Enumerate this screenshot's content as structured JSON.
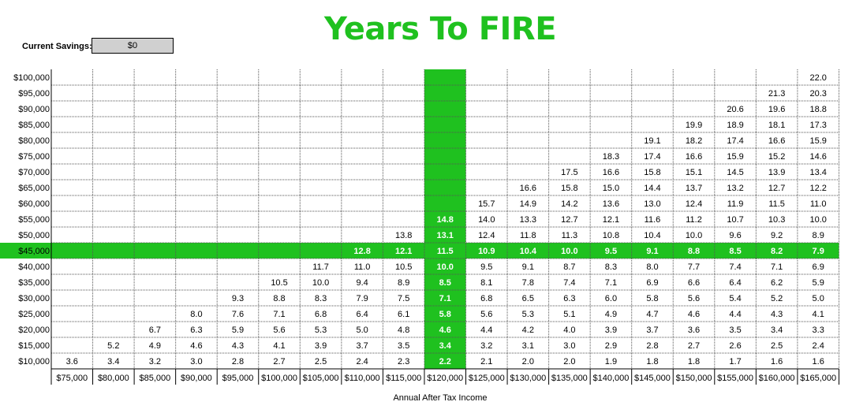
{
  "title": "Years To FIRE",
  "savings": {
    "label": "Current Savings:",
    "value": "$0"
  },
  "chart_data": {
    "type": "table",
    "title": "Years To FIRE",
    "xlabel": "Annual After Tax Income",
    "ylabel": "",
    "x": [
      "$75,000",
      "$80,000",
      "$85,000",
      "$90,000",
      "$95,000",
      "$100,000",
      "$105,000",
      "$110,000",
      "$115,000",
      "$120,000",
      "$125,000",
      "$130,000",
      "$135,000",
      "$140,000",
      "$145,000",
      "$150,000",
      "$155,000",
      "$160,000",
      "$165,000"
    ],
    "y": [
      "$100,000",
      "$95,000",
      "$90,000",
      "$85,000",
      "$80,000",
      "$75,000",
      "$70,000",
      "$65,000",
      "$60,000",
      "$55,000",
      "$50,000",
      "$45,000",
      "$40,000",
      "$35,000",
      "$30,000",
      "$25,000",
      "$20,000",
      "$15,000",
      "$10,000"
    ],
    "highlight_row": "$45,000",
    "highlight_col": "$120,000",
    "highlight_color": "#1fc11f",
    "values": [
      [
        "",
        "",
        "",
        "",
        "",
        "",
        "",
        "",
        "",
        "",
        "",
        "",
        "",
        "",
        "",
        "",
        "",
        "",
        "22.0"
      ],
      [
        "",
        "",
        "",
        "",
        "",
        "",
        "",
        "",
        "",
        "",
        "",
        "",
        "",
        "",
        "",
        "",
        "",
        "21.3",
        "20.3"
      ],
      [
        "",
        "",
        "",
        "",
        "",
        "",
        "",
        "",
        "",
        "",
        "",
        "",
        "",
        "",
        "",
        "",
        "20.6",
        "19.6",
        "18.8"
      ],
      [
        "",
        "",
        "",
        "",
        "",
        "",
        "",
        "",
        "",
        "",
        "",
        "",
        "",
        "",
        "",
        "19.9",
        "18.9",
        "18.1",
        "17.3"
      ],
      [
        "",
        "",
        "",
        "",
        "",
        "",
        "",
        "",
        "",
        "",
        "",
        "",
        "",
        "",
        "19.1",
        "18.2",
        "17.4",
        "16.6",
        "15.9"
      ],
      [
        "",
        "",
        "",
        "",
        "",
        "",
        "",
        "",
        "",
        "",
        "",
        "",
        "",
        "18.3",
        "17.4",
        "16.6",
        "15.9",
        "15.2",
        "14.6"
      ],
      [
        "",
        "",
        "",
        "",
        "",
        "",
        "",
        "",
        "",
        "",
        "",
        "",
        "17.5",
        "16.6",
        "15.8",
        "15.1",
        "14.5",
        "13.9",
        "13.4"
      ],
      [
        "",
        "",
        "",
        "",
        "",
        "",
        "",
        "",
        "",
        "",
        "",
        "16.6",
        "15.8",
        "15.0",
        "14.4",
        "13.7",
        "13.2",
        "12.7",
        "12.2"
      ],
      [
        "",
        "",
        "",
        "",
        "",
        "",
        "",
        "",
        "",
        "",
        "15.7",
        "14.9",
        "14.2",
        "13.6",
        "13.0",
        "12.4",
        "11.9",
        "11.5",
        "11.0"
      ],
      [
        "",
        "",
        "",
        "",
        "",
        "",
        "",
        "",
        "",
        "14.8",
        "14.0",
        "13.3",
        "12.7",
        "12.1",
        "11.6",
        "11.2",
        "10.7",
        "10.3",
        "10.0"
      ],
      [
        "",
        "",
        "",
        "",
        "",
        "",
        "",
        "",
        "13.8",
        "13.1",
        "12.4",
        "11.8",
        "11.3",
        "10.8",
        "10.4",
        "10.0",
        "9.6",
        "9.2",
        "8.9"
      ],
      [
        "",
        "",
        "",
        "",
        "",
        "",
        "",
        "12.8",
        "12.1",
        "11.5",
        "10.9",
        "10.4",
        "10.0",
        "9.5",
        "9.1",
        "8.8",
        "8.5",
        "8.2",
        "7.9"
      ],
      [
        "",
        "",
        "",
        "",
        "",
        "",
        "11.7",
        "11.0",
        "10.5",
        "10.0",
        "9.5",
        "9.1",
        "8.7",
        "8.3",
        "8.0",
        "7.7",
        "7.4",
        "7.1",
        "6.9"
      ],
      [
        "",
        "",
        "",
        "",
        "",
        "10.5",
        "10.0",
        "9.4",
        "8.9",
        "8.5",
        "8.1",
        "7.8",
        "7.4",
        "7.1",
        "6.9",
        "6.6",
        "6.4",
        "6.2",
        "5.9"
      ],
      [
        "",
        "",
        "",
        "",
        "9.3",
        "8.8",
        "8.3",
        "7.9",
        "7.5",
        "7.1",
        "6.8",
        "6.5",
        "6.3",
        "6.0",
        "5.8",
        "5.6",
        "5.4",
        "5.2",
        "5.0"
      ],
      [
        "",
        "",
        "",
        "8.0",
        "7.6",
        "7.1",
        "6.8",
        "6.4",
        "6.1",
        "5.8",
        "5.6",
        "5.3",
        "5.1",
        "4.9",
        "4.7",
        "4.6",
        "4.4",
        "4.3",
        "4.1"
      ],
      [
        "",
        "",
        "6.7",
        "6.3",
        "5.9",
        "5.6",
        "5.3",
        "5.0",
        "4.8",
        "4.6",
        "4.4",
        "4.2",
        "4.0",
        "3.9",
        "3.7",
        "3.6",
        "3.5",
        "3.4",
        "3.3"
      ],
      [
        "",
        "5.2",
        "4.9",
        "4.6",
        "4.3",
        "4.1",
        "3.9",
        "3.7",
        "3.5",
        "3.4",
        "3.2",
        "3.1",
        "3.0",
        "2.9",
        "2.8",
        "2.7",
        "2.6",
        "2.5",
        "2.4"
      ],
      [
        "3.6",
        "3.4",
        "3.2",
        "3.0",
        "2.8",
        "2.7",
        "2.5",
        "2.4",
        "2.3",
        "2.2",
        "2.1",
        "2.0",
        "2.0",
        "1.9",
        "1.8",
        "1.8",
        "1.7",
        "1.6",
        "1.6"
      ]
    ]
  }
}
